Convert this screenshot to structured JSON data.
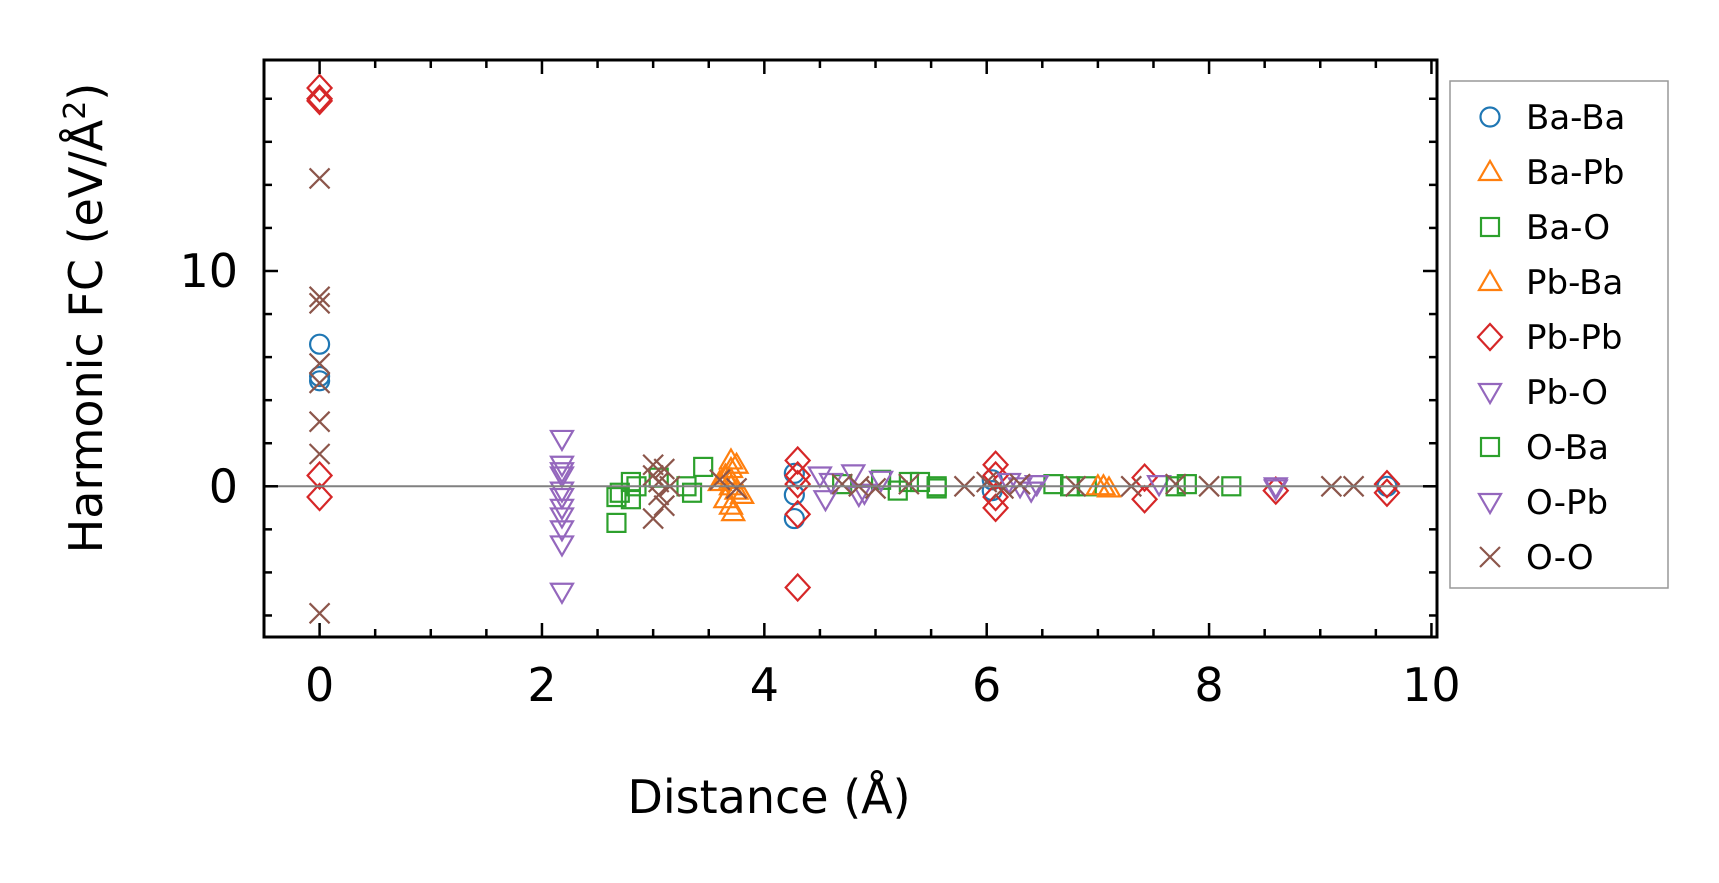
{
  "chart_data": {
    "type": "scatter",
    "title": "",
    "xlabel": "Distance (Å)",
    "ylabel": "Harmonic FC (eV/Å",
    "ylabel_sup": "2",
    "ylabel_end": ")",
    "xlim": [
      -0.5,
      10.05
    ],
    "ylim": [
      -7,
      19.8
    ],
    "xticks": [
      0,
      2,
      4,
      6,
      8,
      10
    ],
    "xtick_labels": [
      "0",
      "2",
      "4",
      "6",
      "8",
      "10"
    ],
    "yticks": [
      0,
      10
    ],
    "ytick_labels": [
      "0",
      "10"
    ],
    "zero_line": 0,
    "grid": false,
    "legend_position": "right-outside",
    "series": [
      {
        "name": "Ba-Ba",
        "marker": "circle",
        "color": "#1f77b4",
        "x": [
          0,
          0,
          0,
          4.27,
          4.27,
          4.27,
          6.05,
          6.05,
          9.6
        ],
        "y": [
          6.6,
          5.1,
          4.9,
          0.6,
          -0.4,
          -1.5,
          0.3,
          -0.2,
          0.0
        ]
      },
      {
        "name": "Ba-Pb",
        "marker": "triangle-up",
        "color": "#ff7f0e",
        "x": [
          3.7,
          3.7,
          3.7,
          3.75,
          3.65,
          3.72,
          3.7,
          7.05,
          7.1
        ],
        "y": [
          1.2,
          0.8,
          0.3,
          -0.2,
          -0.6,
          -1.2,
          0.0,
          0.0,
          -0.1
        ]
      },
      {
        "name": "Ba-O",
        "marker": "square",
        "color": "#2ca02c",
        "x": [
          2.67,
          2.67,
          2.8,
          2.8,
          3.05,
          3.3,
          3.45,
          4.7,
          5.05,
          5.2,
          5.4,
          5.55,
          6.6,
          6.9,
          7.8,
          8.2
        ],
        "y": [
          -1.7,
          -0.5,
          0.2,
          -0.6,
          0.4,
          0.0,
          0.9,
          0.1,
          0.3,
          -0.2,
          0.2,
          0.0,
          0.1,
          0.0,
          0.1,
          0.0
        ]
      },
      {
        "name": "Pb-Ba",
        "marker": "triangle-up",
        "color": "#ff7f0e",
        "x": [
          3.65,
          3.75,
          3.7,
          3.6,
          3.8,
          7.0
        ],
        "y": [
          0.5,
          1.0,
          -0.9,
          0.2,
          -0.4,
          0.0
        ]
      },
      {
        "name": "Pb-Pb",
        "marker": "diamond",
        "color": "#d62728",
        "x": [
          0,
          0,
          0,
          0,
          0,
          4.3,
          4.3,
          4.3,
          4.3,
          4.3,
          6.08,
          6.08,
          6.08,
          6.08,
          7.42,
          7.42,
          8.6,
          9.6,
          9.6
        ],
        "y": [
          18.5,
          18.0,
          17.9,
          0.5,
          -0.5,
          1.2,
          0.5,
          -1.3,
          0.1,
          -4.7,
          1.0,
          0.5,
          -0.5,
          -1.0,
          0.4,
          -0.6,
          -0.2,
          0.1,
          -0.3
        ]
      },
      {
        "name": "Pb-O",
        "marker": "triangle-down",
        "color": "#9467bd",
        "x": [
          2.18,
          2.18,
          2.18,
          2.18,
          2.18,
          2.18,
          2.18,
          2.18,
          2.18,
          4.5,
          4.55,
          4.8,
          4.85,
          5.05,
          6.2,
          6.4,
          6.45,
          7.55,
          8.6
        ],
        "y": [
          2.2,
          1.0,
          0.5,
          -0.2,
          -0.5,
          -1.0,
          -2.0,
          -2.7,
          -4.9,
          0.5,
          -0.6,
          0.6,
          -0.4,
          0.3,
          0.2,
          -0.2,
          0.1,
          0.1,
          0.0
        ]
      },
      {
        "name": "O-Ba",
        "marker": "square",
        "color": "#2ca02c",
        "x": [
          2.7,
          2.85,
          3.35,
          5.3,
          5.55,
          6.75,
          7.7
        ],
        "y": [
          -0.3,
          0.0,
          -0.3,
          0.2,
          -0.1,
          0.0,
          0.0
        ]
      },
      {
        "name": "O-Pb",
        "marker": "triangle-down",
        "color": "#9467bd",
        "x": [
          2.18,
          2.18,
          4.6,
          4.9,
          6.3,
          8.6
        ],
        "y": [
          0.7,
          -1.4,
          0.2,
          -0.3,
          0.0,
          -0.1
        ]
      },
      {
        "name": "O-O",
        "marker": "x",
        "color": "#8c564b",
        "x": [
          0,
          0,
          0,
          0,
          0,
          0,
          0,
          0,
          3.0,
          3.0,
          3.0,
          3.05,
          3.05,
          3.1,
          3.1,
          3.15,
          3.6,
          3.75,
          4.7,
          4.85,
          5.0,
          5.3,
          5.8,
          6.0,
          6.15,
          6.3,
          6.8,
          7.3,
          7.7,
          8.0,
          9.1,
          9.3
        ],
        "y": [
          14.3,
          8.8,
          8.5,
          5.7,
          4.8,
          3.0,
          1.5,
          -5.9,
          1.0,
          0.5,
          -1.5,
          0.2,
          -0.4,
          0.8,
          -0.9,
          0.0,
          0.3,
          -0.1,
          0.1,
          0.0,
          -0.1,
          0.1,
          0.0,
          0.2,
          -0.1,
          0.1,
          0.0,
          0.0,
          0.1,
          0.0,
          0.0,
          0.0
        ]
      }
    ]
  }
}
